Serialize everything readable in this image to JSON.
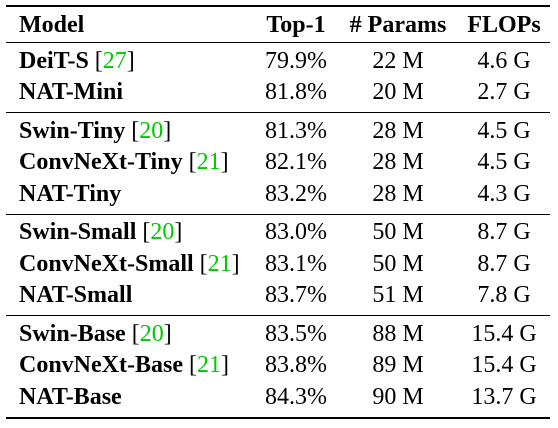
{
  "headers": {
    "model": "Model",
    "top1": "Top-1",
    "params": "# Params",
    "flops": "FLOPs"
  },
  "colors": {
    "citation": "#00c800",
    "text": "#000000"
  },
  "groups": [
    {
      "rows": [
        {
          "model": "DeiT-S",
          "cite_open": "[",
          "cite": "27",
          "cite_close": "]",
          "top1": "79.9%",
          "params": "22 M",
          "flops": "4.6 G"
        },
        {
          "model": "NAT-Mini",
          "top1": "81.8%",
          "params": "20 M",
          "flops": "2.7 G"
        }
      ]
    },
    {
      "rows": [
        {
          "model": "Swin-Tiny",
          "cite_open": "[",
          "cite": "20",
          "cite_close": "]",
          "top1": "81.3%",
          "params": "28 M",
          "flops": "4.5 G"
        },
        {
          "model": "ConvNeXt-Tiny",
          "cite_open": "[",
          "cite": "21",
          "cite_close": "]",
          "top1": "82.1%",
          "params": "28 M",
          "flops": "4.5 G"
        },
        {
          "model": "NAT-Tiny",
          "top1": "83.2%",
          "params": "28 M",
          "flops": "4.3 G"
        }
      ]
    },
    {
      "rows": [
        {
          "model": "Swin-Small",
          "cite_open": "[",
          "cite": "20",
          "cite_close": "]",
          "top1": "83.0%",
          "params": "50 M",
          "flops": "8.7 G"
        },
        {
          "model": "ConvNeXt-Small",
          "cite_open": "[",
          "cite": "21",
          "cite_close": "]",
          "top1": "83.1%",
          "params": "50 M",
          "flops": "8.7 G"
        },
        {
          "model": "NAT-Small",
          "top1": "83.7%",
          "params": "51 M",
          "flops": "7.8 G"
        }
      ]
    },
    {
      "rows": [
        {
          "model": "Swin-Base",
          "cite_open": "[",
          "cite": "20",
          "cite_close": "]",
          "top1": "83.5%",
          "params": "88 M",
          "flops": "15.4 G"
        },
        {
          "model": "ConvNeXt-Base",
          "cite_open": "[",
          "cite": "21",
          "cite_close": "]",
          "top1": "83.8%",
          "params": "89 M",
          "flops": "15.4 G"
        },
        {
          "model": "NAT-Base",
          "top1": "84.3%",
          "params": "90 M",
          "flops": "13.7 G"
        }
      ]
    }
  ]
}
